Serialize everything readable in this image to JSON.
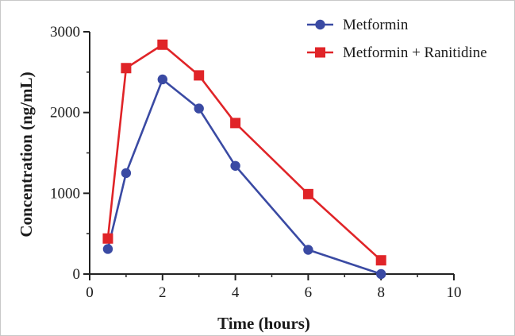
{
  "chart_data": {
    "type": "line",
    "title": "",
    "xlabel": "Time (hours)",
    "ylabel": "Concentration (ng/mL)",
    "xlim": [
      0,
      10
    ],
    "ylim": [
      0,
      3000
    ],
    "xticks": [
      0,
      2,
      4,
      6,
      8,
      10
    ],
    "yticks": [
      0,
      1000,
      2000,
      3000
    ],
    "grid": false,
    "legend_position": "top-right",
    "series": [
      {
        "name": "Metformin",
        "color": "#3a4aa3",
        "marker": "circle",
        "x": [
          0.5,
          1,
          2,
          3,
          4,
          6,
          8
        ],
        "y": [
          310,
          1250,
          2410,
          2050,
          1340,
          300,
          0
        ]
      },
      {
        "name": "Metformin + Ranitidine",
        "color": "#e02428",
        "marker": "square",
        "x": [
          0.5,
          1,
          2,
          3,
          4,
          6,
          8
        ],
        "y": [
          440,
          2550,
          2840,
          2460,
          1870,
          990,
          170
        ]
      }
    ]
  }
}
